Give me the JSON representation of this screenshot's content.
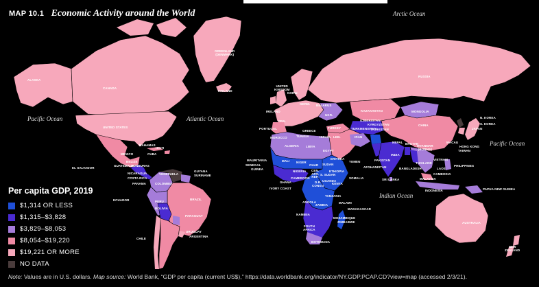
{
  "header": {
    "map_number": "MAP 10.1",
    "title": "Economic Activity around the World"
  },
  "colors": {
    "background": "#000000",
    "band_1": "#1f4fd8",
    "band_2": "#4a2bd1",
    "band_3": "#a57cd9",
    "band_4": "#f08aa4",
    "band_5": "#f7a8bb",
    "no_data": "#4a3c3c"
  },
  "oceans": {
    "arctic": "Arctic Ocean",
    "pacific_west": "Pacific Ocean",
    "atlantic": "Atlantic Ocean",
    "pacific_east": "Pacific Ocean",
    "indian": "Indian Ocean"
  },
  "countries": {
    "alaska": "ALASKA",
    "canada": "CANADA",
    "greenland": "GREENLAND\n(DENMARK)",
    "iceland": "ICELAND",
    "united_states": "UNITED STATES",
    "mexico": "MEXICO",
    "cuba": "CUBA",
    "bahamas": "BAHAMAS",
    "haiti": "HAITI",
    "belize": "BELIZE",
    "guatemala": "GUATEMALA",
    "honduras": "HONDURAS",
    "el_salvador": "EL SALVADOR",
    "nicaragua": "NICARAGUA",
    "costa_rica": "COSTA RICA",
    "panama": "PANAMA",
    "venezuela": "VENEZUELA",
    "colombia": "COLOMBIA",
    "guyana": "GUYANA",
    "suriname": "SURINAME",
    "ecuador": "ECUADOR",
    "peru": "PERU",
    "brazil": "BRAZIL",
    "bolivia": "BOLIVIA",
    "paraguay": "PARAGUAY",
    "uruguay": "URUGUAY",
    "chile": "CHILE",
    "argentina": "ARGENTINA",
    "united_kingdom": "UNITED\nKINGDOM",
    "ireland": "IRELAND",
    "portugal": "PORTUGAL",
    "morocco": "MOROCCO",
    "algeria": "ALGERIA",
    "libya": "LIBYA",
    "egypt": "EGYPT",
    "tunisia": "TUNISIA",
    "israel": "ISRAEL",
    "leb": "LEB.",
    "greece": "GREECE",
    "turkey": "TURKEY",
    "iran": "IRAN",
    "kazakhstan": "KAZAKHSTAN",
    "uzbekistan": "UZBEKISTAN",
    "turkmenistan": "TURKMENISTAN",
    "kyrgyzstan": "KYRGYZSTAN",
    "tajikistan": "TAJIKISTAN",
    "afghanistan": "AFGHANISTAN",
    "pakistan": "PAKISTAN",
    "india": "INDIA",
    "nepal": "NEPAL",
    "bhutan": "BHUTAN",
    "bangladesh": "BANGLADESH",
    "sri_lanka": "SRI LANKA",
    "myanmar": "MYANMAR\n(BURMA)",
    "thailand": "THAILAND",
    "laos": "LAOS",
    "vietnam": "VIETNAM",
    "cambodia": "CAMBODIA",
    "malaysia": "MALAYSIA",
    "indonesia": "INDONESIA",
    "philippines": "PHILIPPINES",
    "china": "CHINA",
    "mongolia": "MONGOLIA",
    "russia": "RUSSIA",
    "n_korea": "N. KOREA",
    "s_korea": "S. KOREA",
    "japan": "JAPAN",
    "taiwan": "TAIWAN",
    "hong_kong": "HONG KONG",
    "macau": "MACAU",
    "papua_new_guinea": "PAPUA NEW GUINEA",
    "australia": "AUSTRALIA",
    "new_zealand": "NEW\nZEALAND",
    "mauritania": "MAURITANIA",
    "senegal": "SENEGAL",
    "mali": "MALI",
    "niger": "NIGER",
    "chad": "CHAD",
    "sudan": "SUDAN",
    "eritrea": "ERITREA",
    "yemen": "YEMEN",
    "guinea": "GUINEA",
    "nigeria": "NIGERIA",
    "cameroon": "CAMEROON",
    "ghana": "GHANA",
    "ivory_coast": "IVORY COAST",
    "car": "CEN.\nAFR.\nREP.",
    "s_sudan": "S. SUDAN",
    "ethiopia": "ETHIOPIA",
    "somalia": "SOMALIA",
    "uganda": "UGANDA",
    "kenya": "KENYA",
    "drc": "D.R.\nCONGO",
    "tanzania": "TANZANIA",
    "angola": "ANGOLA",
    "zambia": "ZAMBIA",
    "malawi": "MALAWI",
    "mozambique": "MOZAMBIQUE",
    "zimbabwe": "ZIMBABWE",
    "madagascar": "MADAGASCAR",
    "namibia": "NAMIBIA",
    "botswana": "BOTSWANA",
    "south_africa": "SOUTH\nAFRICA",
    "norway": "NORW.",
    "germany": "GERM.",
    "france": "FRA.",
    "belarus": "BELARUS",
    "ukraine": "UKR."
  },
  "legend": {
    "title": "Per capita GDP, 2019",
    "items": [
      {
        "label": "$1,314 OR LESS",
        "color": "#1f4fd8"
      },
      {
        "label": "$1,315–$3,828",
        "color": "#4a2bd1"
      },
      {
        "label": "$3,829–$8,053",
        "color": "#a57cd9"
      },
      {
        "label": "$8,054–$19,220",
        "color": "#f08aa4"
      },
      {
        "label": "$19,221 OR MORE",
        "color": "#f7a8bb"
      },
      {
        "label": "NO DATA",
        "color": "#4a3c3c"
      }
    ]
  },
  "note": {
    "note_label": "Note:",
    "note_text": " Values are in U.S. dollars. ",
    "source_label": "Map source:",
    "source_text": " World Bank, “GDP per capita (current US$),”  https://data.worldbank.org/indicator/NY.GDP.PCAP.CD?view=map (accessed 2/3/21)."
  }
}
